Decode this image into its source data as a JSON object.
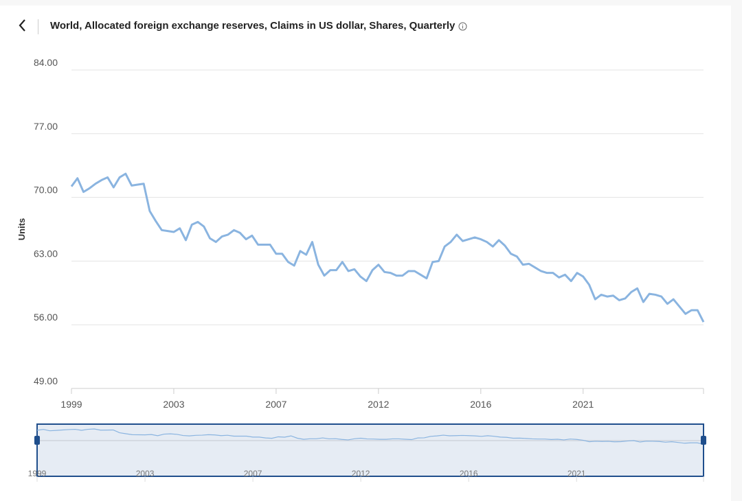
{
  "header": {
    "title": "World, Allocated foreign exchange reserves, Claims in US dollar, Shares, Quarterly",
    "back_icon": "chevron-left-icon",
    "info_icon": "info-icon"
  },
  "colors": {
    "line": "#8ab4e0",
    "navigator_fill": "#e6ecf4",
    "navigator_border": "#1f4e8c",
    "grid": "#e3e3e3",
    "text": "#555555"
  },
  "chart_data": {
    "type": "line",
    "title": "World, Allocated foreign exchange reserves, Claims in US dollar, Shares, Quarterly",
    "xlabel": "",
    "ylabel": "Units",
    "ylim": [
      49,
      84
    ],
    "yticks": [
      "49.00",
      "56.00",
      "63.00",
      "70.00",
      "77.00",
      "84.00"
    ],
    "ytick_values": [
      49,
      56,
      63,
      70,
      77,
      84
    ],
    "xticks": [
      {
        "label": "1999",
        "index": 0
      },
      {
        "label": "2003",
        "index": 17
      },
      {
        "label": "2007",
        "index": 34
      },
      {
        "label": "2012",
        "index": 51
      },
      {
        "label": "2016",
        "index": 68
      },
      {
        "label": "2021",
        "index": 85
      }
    ],
    "grid": true,
    "series": [
      {
        "name": "Claims in US dollar share",
        "values": [
          71.2,
          72.1,
          70.6,
          71.0,
          71.5,
          71.9,
          72.2,
          71.1,
          72.2,
          72.6,
          71.3,
          71.4,
          71.5,
          68.5,
          67.4,
          66.4,
          66.3,
          66.2,
          66.6,
          65.3,
          67.0,
          67.3,
          66.8,
          65.5,
          65.1,
          65.7,
          65.9,
          66.4,
          66.1,
          65.4,
          65.8,
          64.8,
          64.8,
          64.8,
          63.8,
          63.8,
          62.9,
          62.5,
          64.1,
          63.7,
          65.1,
          62.6,
          61.4,
          62.0,
          62.0,
          62.9,
          61.9,
          62.1,
          61.3,
          60.8,
          62.0,
          62.6,
          61.8,
          61.7,
          61.4,
          61.4,
          61.9,
          61.9,
          61.5,
          61.1,
          62.9,
          63.0,
          64.6,
          65.1,
          65.9,
          65.2,
          65.4,
          65.6,
          65.4,
          65.1,
          64.6,
          65.3,
          64.7,
          63.8,
          63.5,
          62.6,
          62.7,
          62.3,
          61.9,
          61.7,
          61.7,
          61.2,
          61.5,
          60.8,
          61.7,
          61.3,
          60.4,
          58.8,
          59.3,
          59.1,
          59.2,
          58.7,
          58.9,
          59.6,
          60.0,
          58.5,
          59.4,
          59.3,
          59.1,
          58.3,
          58.8,
          58.0,
          57.2,
          57.6,
          57.6,
          56.3
        ]
      }
    ],
    "navigator": {
      "xticks": [
        "1999",
        "2003",
        "2007",
        "2012",
        "2016",
        "2021"
      ]
    }
  }
}
